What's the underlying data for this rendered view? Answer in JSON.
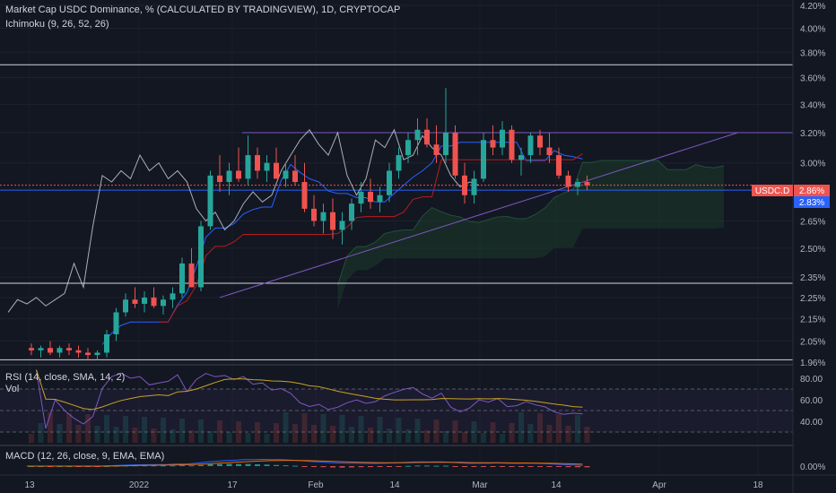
{
  "header": {
    "title": "Market Cap USDC Dominance, % (CALCULATED BY TRADINGVIEW), 1D, CRYPTOCAP",
    "indicator": "Ichimoku (9, 26, 52, 26)"
  },
  "colors": {
    "background": "#131722",
    "up": "#26a69a",
    "down": "#ef5350",
    "tenkan": "#2962ff",
    "kijun": "#b71c1c",
    "chikou": "#d1d4dc",
    "cloud": "#1b3a2a",
    "trendline": "#7e57c2",
    "rsi": "#7e57c2",
    "rsi_ma": "#c9a227",
    "macd": "#2962ff",
    "signal": "#ef6c00"
  },
  "price_axis": {
    "ticks": [
      "4.20%",
      "4.00%",
      "3.80%",
      "3.60%",
      "3.40%",
      "3.20%",
      "3.00%",
      "2.65%",
      "2.50%",
      "2.35%",
      "2.25%",
      "2.15%",
      "2.05%",
      "1.96%"
    ],
    "last_label": "USDC.D",
    "last_value": "2.86%",
    "second_value": "2.83%"
  },
  "rsi_panel": {
    "title": "RSI (14, close, SMA, 14, 2)",
    "vol_label": "Vol",
    "ticks": [
      "80.00",
      "60.00",
      "40.00"
    ]
  },
  "macd_panel": {
    "title": "MACD (12, 26, close, 9, EMA, EMA)",
    "ticks": [
      "0.00%"
    ]
  },
  "time_axis": {
    "labels": [
      "13",
      "2022",
      "17",
      "Feb",
      "14",
      "Mar",
      "14",
      "Apr",
      "18"
    ]
  },
  "chart_data": {
    "type": "candlestick",
    "ylim": [
      1.96,
      4.2
    ],
    "log_scale": true,
    "ohlc": [
      [
        2.02,
        2.04,
        1.99,
        2.01
      ],
      [
        2.01,
        2.03,
        1.98,
        2.02
      ],
      [
        2.02,
        2.05,
        1.99,
        2.0
      ],
      [
        2.0,
        2.03,
        1.98,
        2.02
      ],
      [
        2.02,
        2.04,
        1.99,
        2.01
      ],
      [
        2.01,
        2.03,
        1.98,
        2.0
      ],
      [
        2.0,
        2.02,
        1.97,
        1.99
      ],
      [
        1.99,
        2.01,
        1.97,
        2.0
      ],
      [
        2.0,
        2.1,
        1.98,
        2.08
      ],
      [
        2.08,
        2.2,
        2.05,
        2.18
      ],
      [
        2.18,
        2.27,
        2.16,
        2.24
      ],
      [
        2.24,
        2.3,
        2.2,
        2.22
      ],
      [
        2.22,
        2.28,
        2.18,
        2.25
      ],
      [
        2.25,
        2.3,
        2.2,
        2.21
      ],
      [
        2.21,
        2.26,
        2.17,
        2.24
      ],
      [
        2.24,
        2.3,
        2.2,
        2.27
      ],
      [
        2.27,
        2.45,
        2.25,
        2.42
      ],
      [
        2.42,
        2.5,
        2.3,
        2.3
      ],
      [
        2.3,
        2.65,
        2.28,
        2.62
      ],
      [
        2.62,
        2.95,
        2.6,
        2.92
      ],
      [
        2.92,
        3.05,
        2.82,
        2.88
      ],
      [
        2.88,
        3.0,
        2.8,
        2.95
      ],
      [
        2.95,
        3.1,
        2.88,
        2.9
      ],
      [
        2.9,
        3.18,
        2.86,
        3.05
      ],
      [
        3.05,
        3.1,
        2.9,
        2.95
      ],
      [
        2.95,
        3.05,
        2.88,
        3.0
      ],
      [
        3.0,
        3.1,
        2.92,
        2.9
      ],
      [
        2.9,
        3.0,
        2.85,
        2.95
      ],
      [
        2.95,
        3.05,
        2.86,
        2.88
      ],
      [
        2.88,
        3.0,
        2.7,
        2.72
      ],
      [
        2.72,
        2.8,
        2.62,
        2.65
      ],
      [
        2.65,
        2.75,
        2.58,
        2.7
      ],
      [
        2.7,
        2.78,
        2.55,
        2.6
      ],
      [
        2.6,
        2.7,
        2.52,
        2.65
      ],
      [
        2.65,
        2.78,
        2.6,
        2.75
      ],
      [
        2.75,
        2.88,
        2.7,
        2.82
      ],
      [
        2.82,
        2.9,
        2.72,
        2.76
      ],
      [
        2.76,
        2.85,
        2.7,
        2.8
      ],
      [
        2.8,
        3.0,
        2.76,
        2.95
      ],
      [
        2.95,
        3.1,
        2.9,
        3.05
      ],
      [
        3.05,
        3.2,
        3.0,
        3.15
      ],
      [
        3.15,
        3.3,
        3.05,
        3.22
      ],
      [
        3.22,
        3.3,
        3.1,
        3.12
      ],
      [
        3.12,
        3.25,
        3.0,
        3.05
      ],
      [
        3.05,
        3.52,
        3.0,
        3.2
      ],
      [
        3.2,
        3.25,
        2.9,
        2.92
      ],
      [
        2.92,
        3.0,
        2.75,
        2.8
      ],
      [
        2.8,
        2.95,
        2.75,
        2.9
      ],
      [
        2.9,
        3.2,
        2.88,
        3.15
      ],
      [
        3.15,
        3.25,
        3.05,
        3.1
      ],
      [
        3.1,
        3.28,
        3.05,
        3.22
      ],
      [
        3.22,
        3.25,
        3.0,
        3.02
      ],
      [
        3.02,
        3.1,
        2.92,
        3.05
      ],
      [
        3.05,
        3.2,
        3.0,
        3.18
      ],
      [
        3.18,
        3.22,
        3.05,
        3.1
      ],
      [
        3.1,
        3.2,
        3.0,
        3.05
      ],
      [
        3.05,
        3.1,
        2.9,
        2.92
      ],
      [
        2.92,
        2.95,
        2.82,
        2.85
      ],
      [
        2.85,
        2.9,
        2.8,
        2.88
      ],
      [
        2.88,
        2.92,
        2.83,
        2.86
      ]
    ],
    "cloud_end": 75,
    "horizontal_lines": [
      3.7,
      3.2,
      2.83,
      2.32,
      1.97
    ],
    "trendlines": [
      [
        20,
        2.25,
        75,
        3.2
      ]
    ]
  }
}
